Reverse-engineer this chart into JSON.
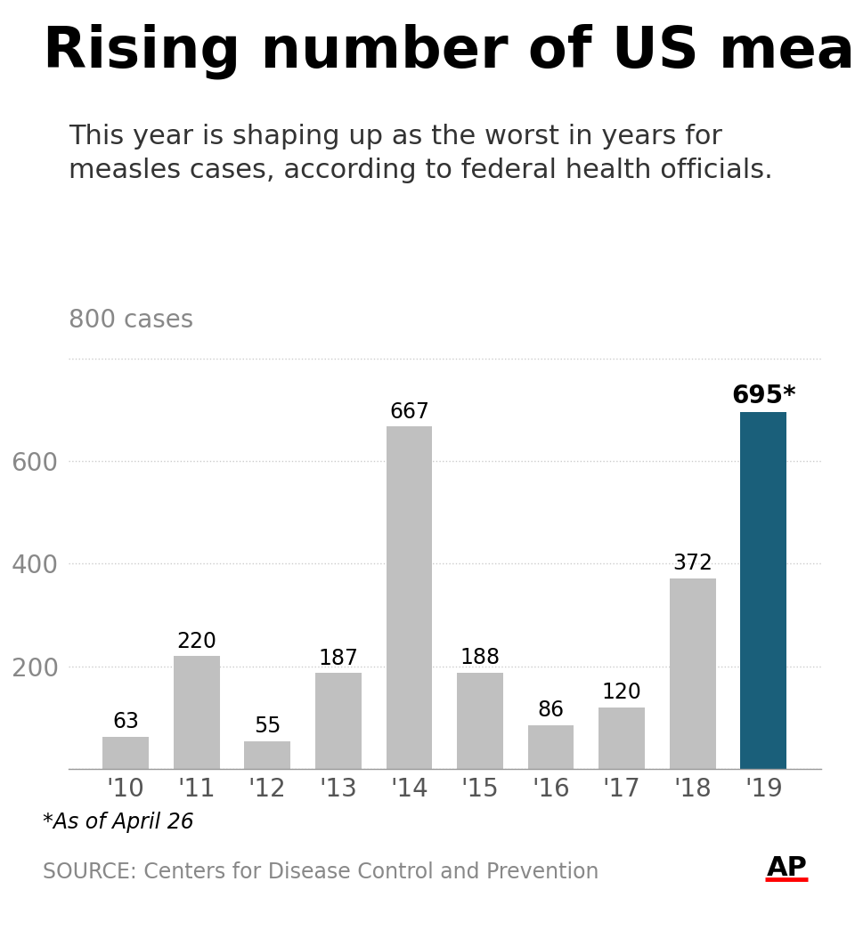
{
  "title": "Rising number of US measles cases",
  "subtitle": "This year is shaping up as the worst in years for\nmeasles cases, according to federal health officials.",
  "years": [
    "'10",
    "'11",
    "'12",
    "'13",
    "'14",
    "'15",
    "'16",
    "'17",
    "'18",
    "'19"
  ],
  "values": [
    63,
    220,
    55,
    187,
    667,
    188,
    86,
    120,
    372,
    695
  ],
  "bar_colors": [
    "#c0c0c0",
    "#c0c0c0",
    "#c0c0c0",
    "#c0c0c0",
    "#c0c0c0",
    "#c0c0c0",
    "#c0c0c0",
    "#c0c0c0",
    "#c0c0c0",
    "#1a5f7a"
  ],
  "highlight_index": 9,
  "highlight_label": "695*",
  "ylim": [
    0,
    840
  ],
  "yticks": [
    0,
    200,
    400,
    600,
    800
  ],
  "grid_color": "#cccccc",
  "background_color": "#ffffff",
  "title_fontsize": 46,
  "subtitle_fontsize": 22,
  "bar_label_fontsize": 17,
  "axis_label_fontsize": 20,
  "footnote": "*As of April 26",
  "source": "SOURCE: Centers for Disease Control and Prevention",
  "footnote_fontsize": 17,
  "source_fontsize": 17,
  "ap_text": "AP",
  "ylabel_top": "800 cases",
  "ylabel_top_fontsize": 20
}
